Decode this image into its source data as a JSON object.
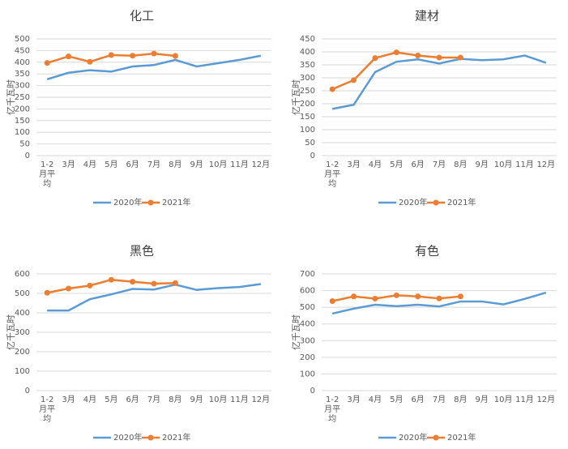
{
  "chart_data": [
    {
      "type": "line",
      "title": "化工",
      "y_label": "亿千瓦时",
      "categories": [
        "1-2月平均",
        "3月",
        "4月",
        "5月",
        "6月",
        "7月",
        "8月",
        "9月",
        "10月",
        "11月",
        "12月"
      ],
      "series": [
        {
          "name": "2020年",
          "color": "#5b9bd5",
          "values": [
            327,
            355,
            366,
            360,
            382,
            388,
            410,
            382,
            396,
            410,
            428
          ]
        },
        {
          "name": "2021年",
          "color": "#ed7d31",
          "values": [
            397,
            425,
            402,
            431,
            428,
            437,
            427,
            null,
            null,
            null,
            null
          ]
        }
      ],
      "ylim": [
        0,
        500
      ],
      "yticks": [
        0,
        50,
        100,
        150,
        200,
        250,
        300,
        350,
        400,
        450,
        500
      ],
      "grid": true,
      "legend": "bottom"
    },
    {
      "type": "line",
      "title": "建材",
      "y_label": "亿千瓦时",
      "categories": [
        "1-2月平均",
        "3月",
        "4月",
        "5月",
        "6月",
        "7月",
        "8月",
        "9月",
        "10月",
        "11月",
        "12月"
      ],
      "series": [
        {
          "name": "2020年",
          "color": "#5b9bd5",
          "values": [
            180,
            196,
            322,
            362,
            371,
            355,
            373,
            368,
            371,
            386,
            358
          ]
        },
        {
          "name": "2021年",
          "color": "#ed7d31",
          "values": [
            256,
            291,
            376,
            398,
            386,
            378,
            378,
            null,
            null,
            null,
            null
          ]
        }
      ],
      "ylim": [
        0,
        450
      ],
      "yticks": [
        0,
        50,
        100,
        150,
        200,
        250,
        300,
        350,
        400,
        450
      ],
      "grid": true,
      "legend": "bottom"
    },
    {
      "type": "line",
      "title": "黑色",
      "y_label": "亿千瓦时",
      "categories": [
        "1-2月平均",
        "3月",
        "4月",
        "5月",
        "6月",
        "7月",
        "8月",
        "9月",
        "10月",
        "11月",
        "12月"
      ],
      "series": [
        {
          "name": "2020年",
          "color": "#5b9bd5",
          "values": [
            412,
            412,
            470,
            495,
            523,
            520,
            545,
            518,
            527,
            533,
            548
          ]
        },
        {
          "name": "2021年",
          "color": "#ed7d31",
          "values": [
            503,
            525,
            540,
            570,
            560,
            550,
            553,
            null,
            null,
            null,
            null
          ]
        }
      ],
      "ylim": [
        0,
        600
      ],
      "yticks": [
        0,
        100,
        200,
        300,
        400,
        500,
        600
      ],
      "grid": true,
      "legend": "bottom"
    },
    {
      "type": "line",
      "title": "有色",
      "y_label": "亿千瓦时",
      "categories": [
        "1-2月平均",
        "3月",
        "4月",
        "5月",
        "6月",
        "7月",
        "8月",
        "9月",
        "10月",
        "11月",
        "12月"
      ],
      "series": [
        {
          "name": "2020年",
          "color": "#5b9bd5",
          "values": [
            462,
            492,
            515,
            507,
            515,
            505,
            535,
            535,
            517,
            550,
            588
          ]
        },
        {
          "name": "2021年",
          "color": "#ed7d31",
          "values": [
            537,
            565,
            552,
            572,
            565,
            553,
            565,
            null,
            null,
            null,
            null
          ]
        }
      ],
      "ylim": [
        0,
        700
      ],
      "yticks": [
        0,
        100,
        200,
        300,
        400,
        500,
        600,
        700
      ],
      "grid": true,
      "legend": "bottom"
    }
  ]
}
